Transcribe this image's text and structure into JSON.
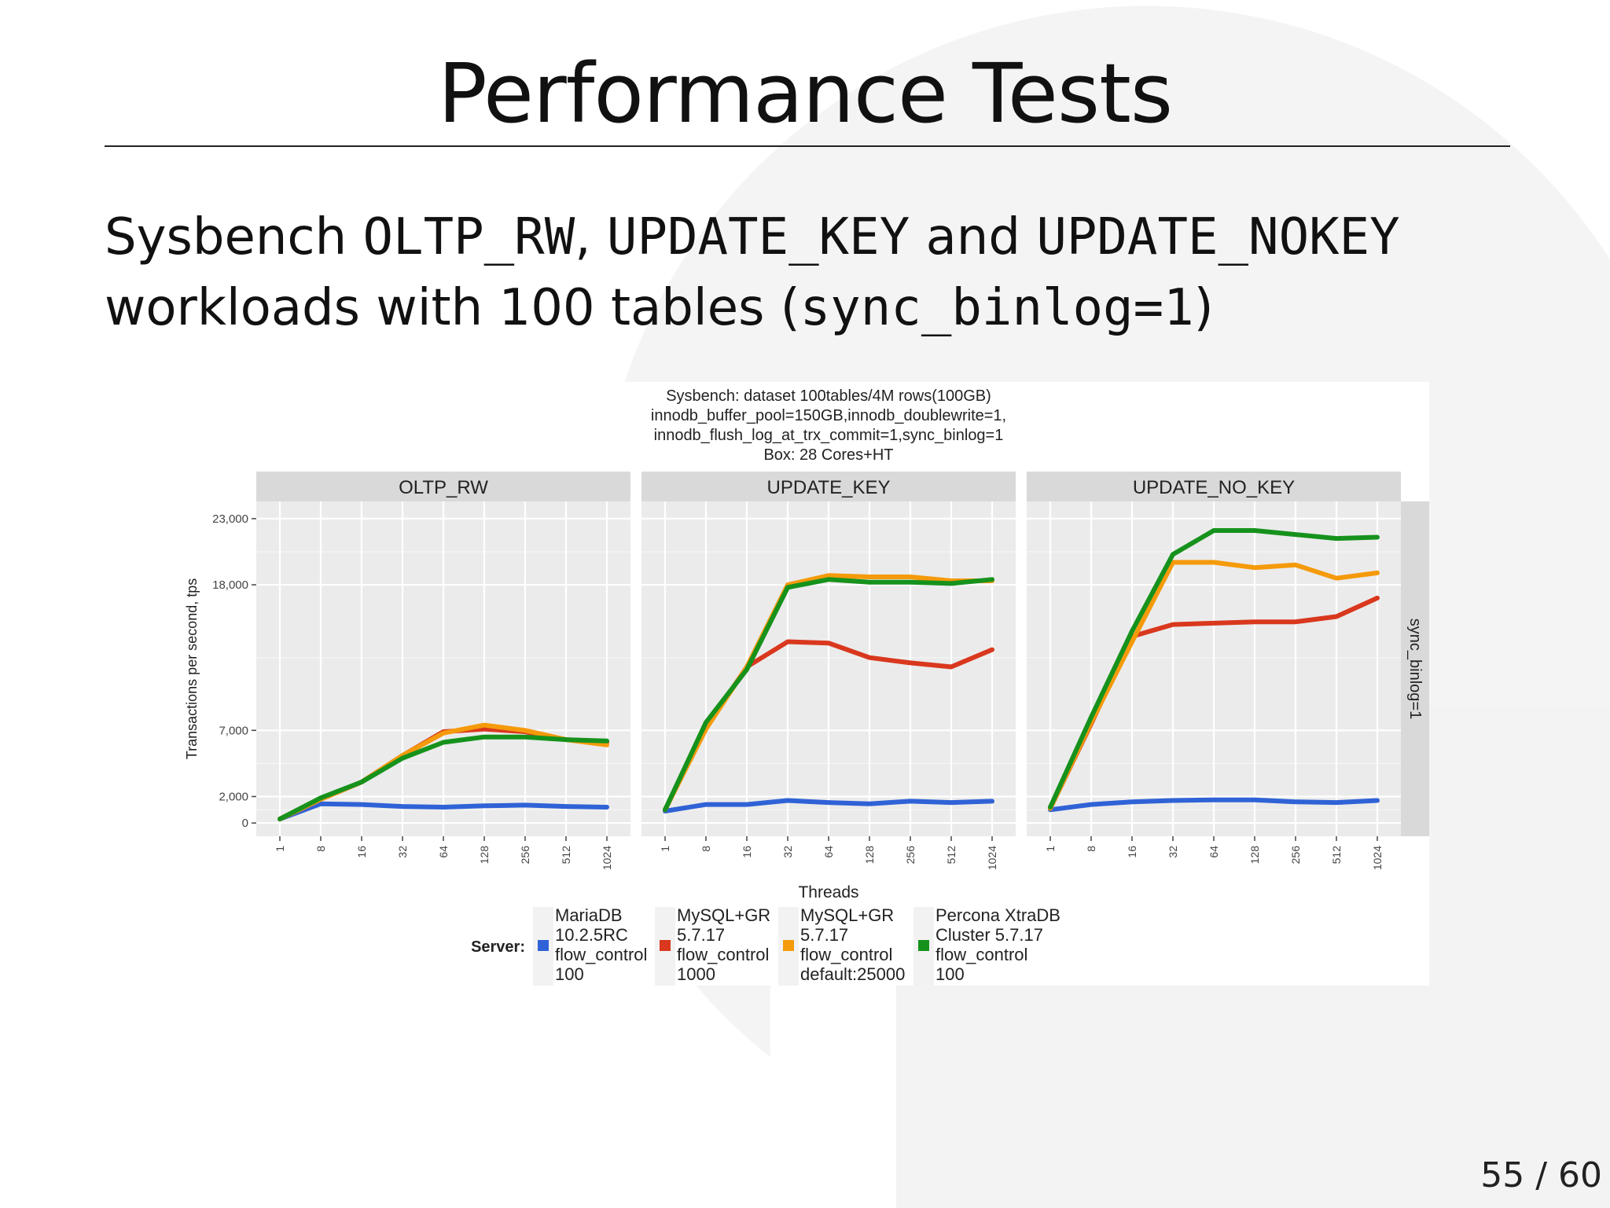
{
  "slide": {
    "title": "Performance Tests",
    "subtitle_line1": [
      "Sysbench ",
      "OLTP_RW",
      ", ",
      "UPDATE_KEY",
      " and ",
      "UPDATE_NOKEY"
    ],
    "subtitle_line2": [
      "workloads with 100 tables (",
      "sync_binlog=1",
      ")"
    ],
    "page_number": "55 / 60"
  },
  "chart_data": {
    "type": "line",
    "title": [
      "Sysbench: dataset 100tables/4M rows(100GB)",
      "innodb_buffer_pool=150GB,innodb_doublewrite=1,",
      "innodb_flush_log_at_trx_commit=1,sync_binlog=1",
      "Box: 28 Cores+HT"
    ],
    "xlabel": "Threads",
    "ylabel": "Transactions per second, tps",
    "x": [
      "1",
      "8",
      "16",
      "32",
      "64",
      "128",
      "256",
      "512",
      "1024"
    ],
    "y_ticks": [
      0,
      2000,
      7000,
      18000,
      23000
    ],
    "y_tick_labels": [
      "0",
      "2,000",
      "7,000",
      "18,000",
      "23,000"
    ],
    "ylim": [
      -1000,
      24300
    ],
    "row_strip": "sync_binlog=1",
    "grid": true,
    "legend": {
      "title": "Server:",
      "position": "bottom",
      "entries": [
        {
          "lines": [
            "MariaDB",
            "10.2.5RC",
            "flow_control",
            "100"
          ],
          "color": "#2f62d6"
        },
        {
          "lines": [
            "MySQL+GR",
            "5.7.17",
            "flow_control",
            "1000"
          ],
          "color": "#d9381e"
        },
        {
          "lines": [
            "MySQL+GR",
            "5.7.17",
            "flow_control",
            "default:25000"
          ],
          "color": "#f59a0a"
        },
        {
          "lines": [
            "Percona XtraDB",
            "Cluster 5.7.17",
            "flow_control",
            "100"
          ],
          "color": "#16921c"
        }
      ]
    },
    "panels": [
      {
        "name": "OLTP_RW",
        "series": [
          {
            "color": "#2f62d6",
            "values": [
              300,
              1450,
              1400,
              1250,
              1200,
              1300,
              1350,
              1250,
              1200
            ]
          },
          {
            "color": "#d9381e",
            "values": [
              300,
              1800,
              3100,
              5100,
              6900,
              7100,
              6900,
              6300,
              6100
            ]
          },
          {
            "color": "#f59a0a",
            "values": [
              300,
              1800,
              3100,
              5100,
              6800,
              7400,
              7000,
              6300,
              5900
            ]
          },
          {
            "color": "#16921c",
            "values": [
              300,
              1900,
              3100,
              4900,
              6100,
              6500,
              6500,
              6300,
              6200
            ]
          }
        ]
      },
      {
        "name": "UPDATE_KEY",
        "series": [
          {
            "color": "#2f62d6",
            "values": [
              900,
              1400,
              1400,
              1700,
              1550,
              1450,
              1650,
              1550,
              1650
            ]
          },
          {
            "color": "#d9381e",
            "values": [
              1000,
              7200,
              11800,
              13700,
              13600,
              12500,
              12100,
              11800,
              13100
            ]
          },
          {
            "color": "#f59a0a",
            "values": [
              1000,
              7100,
              11800,
              18000,
              18700,
              18600,
              18600,
              18300,
              18300
            ]
          },
          {
            "color": "#16921c",
            "values": [
              1000,
              7600,
              11600,
              17800,
              18400,
              18200,
              18200,
              18100,
              18400
            ]
          }
        ]
      },
      {
        "name": "UPDATE_NO_KEY",
        "series": [
          {
            "color": "#2f62d6",
            "values": [
              1000,
              1400,
              1600,
              1700,
              1750,
              1750,
              1600,
              1550,
              1700
            ]
          },
          {
            "color": "#d9381e",
            "values": [
              1100,
              7500,
              14100,
              15000,
              15100,
              15200,
              15200,
              15600,
              17000
            ]
          },
          {
            "color": "#f59a0a",
            "values": [
              1100,
              7600,
              13700,
              19700,
              19700,
              19300,
              19500,
              18500,
              18900
            ]
          },
          {
            "color": "#16921c",
            "values": [
              1200,
              8000,
              14500,
              20300,
              22100,
              22100,
              21800,
              21500,
              21600
            ]
          }
        ]
      }
    ]
  }
}
